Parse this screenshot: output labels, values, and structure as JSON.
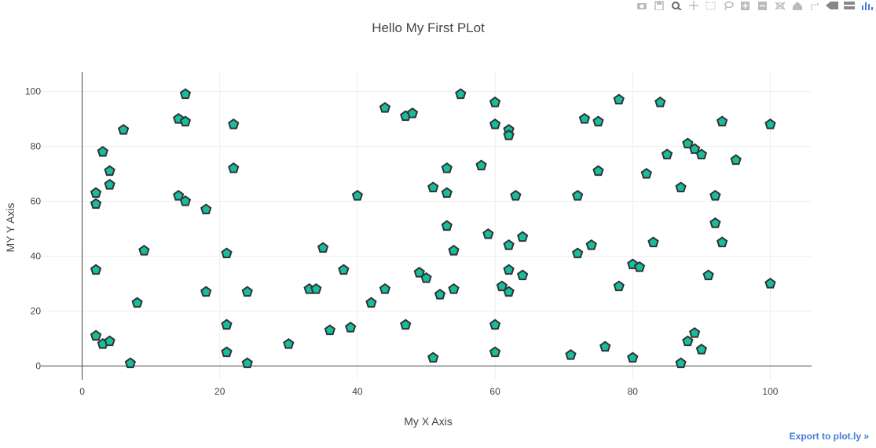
{
  "modebar": {
    "icons": [
      "camera-icon",
      "save-icon",
      "zoom-icon",
      "pan-icon",
      "box-select-icon",
      "lasso-icon",
      "zoom-in-icon",
      "zoom-out-icon",
      "autoscale-icon",
      "home-icon",
      "spike-icon",
      "hover-closest-icon",
      "hover-compare-icon",
      "plotly-logo-icon"
    ]
  },
  "export_link": "Export to plot.ly »",
  "chart_data": {
    "type": "scatter",
    "title": "Hello My First PLot",
    "xlabel": "My X Axis",
    "ylabel": "MY Y Axis",
    "xlim": [
      -6,
      106
    ],
    "ylim": [
      -5,
      107
    ],
    "xticks": [
      0,
      20,
      40,
      60,
      80,
      100
    ],
    "yticks": [
      0,
      20,
      40,
      60,
      80,
      100
    ],
    "grid": true,
    "marker": {
      "symbol": "pentagon",
      "fill": "#17be9e",
      "stroke": "#333333"
    },
    "points": [
      [
        2,
        63
      ],
      [
        2,
        59
      ],
      [
        2,
        35
      ],
      [
        2,
        11
      ],
      [
        3,
        78
      ],
      [
        3,
        8
      ],
      [
        4,
        71
      ],
      [
        4,
        66
      ],
      [
        4,
        9
      ],
      [
        6,
        86
      ],
      [
        7,
        1
      ],
      [
        8,
        23
      ],
      [
        9,
        42
      ],
      [
        14,
        90
      ],
      [
        14,
        62
      ],
      [
        15,
        99
      ],
      [
        15,
        89
      ],
      [
        15,
        60
      ],
      [
        18,
        57
      ],
      [
        18,
        27
      ],
      [
        21,
        41
      ],
      [
        21,
        15
      ],
      [
        21,
        5
      ],
      [
        22,
        88
      ],
      [
        22,
        72
      ],
      [
        24,
        27
      ],
      [
        24,
        1
      ],
      [
        30,
        8
      ],
      [
        33,
        28
      ],
      [
        34,
        28
      ],
      [
        35,
        43
      ],
      [
        36,
        13
      ],
      [
        38,
        35
      ],
      [
        39,
        14
      ],
      [
        40,
        62
      ],
      [
        42,
        23
      ],
      [
        44,
        94
      ],
      [
        44,
        28
      ],
      [
        47,
        91
      ],
      [
        47,
        15
      ],
      [
        48,
        92
      ],
      [
        49,
        34
      ],
      [
        50,
        32
      ],
      [
        51,
        65
      ],
      [
        51,
        3
      ],
      [
        52,
        26
      ],
      [
        53,
        72
      ],
      [
        53,
        63
      ],
      [
        53,
        51
      ],
      [
        54,
        42
      ],
      [
        54,
        28
      ],
      [
        55,
        99
      ],
      [
        58,
        73
      ],
      [
        59,
        48
      ],
      [
        60,
        96
      ],
      [
        60,
        88
      ],
      [
        60,
        15
      ],
      [
        60,
        5
      ],
      [
        61,
        29
      ],
      [
        62,
        86
      ],
      [
        62,
        84
      ],
      [
        62,
        44
      ],
      [
        62,
        35
      ],
      [
        62,
        27
      ],
      [
        63,
        62
      ],
      [
        64,
        47
      ],
      [
        64,
        33
      ],
      [
        71,
        4
      ],
      [
        72,
        62
      ],
      [
        72,
        41
      ],
      [
        73,
        90
      ],
      [
        74,
        44
      ],
      [
        75,
        89
      ],
      [
        75,
        71
      ],
      [
        76,
        7
      ],
      [
        78,
        97
      ],
      [
        78,
        29
      ],
      [
        80,
        37
      ],
      [
        80,
        3
      ],
      [
        81,
        36
      ],
      [
        82,
        70
      ],
      [
        83,
        45
      ],
      [
        84,
        96
      ],
      [
        85,
        77
      ],
      [
        87,
        65
      ],
      [
        87,
        1
      ],
      [
        88,
        81
      ],
      [
        88,
        9
      ],
      [
        89,
        79
      ],
      [
        89,
        12
      ],
      [
        90,
        77
      ],
      [
        90,
        6
      ],
      [
        91,
        33
      ],
      [
        92,
        62
      ],
      [
        92,
        52
      ],
      [
        93,
        89
      ],
      [
        93,
        45
      ],
      [
        95,
        75
      ],
      [
        100,
        88
      ],
      [
        100,
        30
      ]
    ]
  }
}
